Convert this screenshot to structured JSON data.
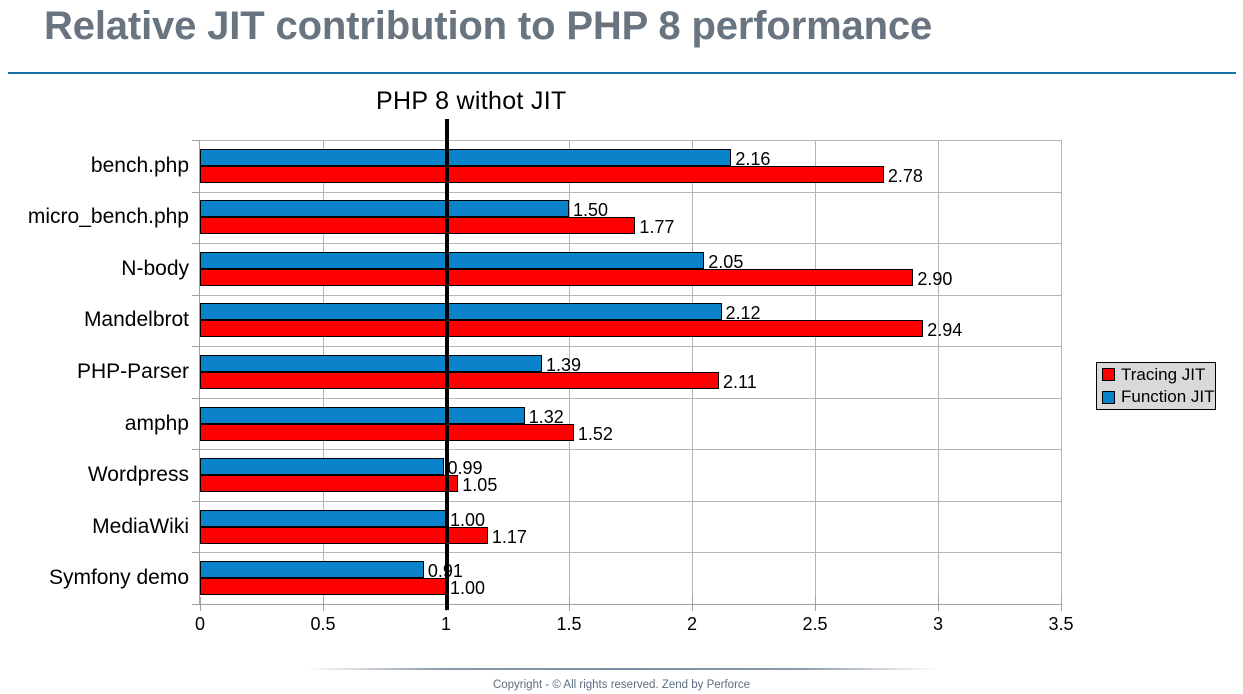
{
  "title": "Relative JIT contribution to PHP 8 performance",
  "footer": {
    "text": "Copyright - © All rights reserved. Zend by Perforce"
  },
  "colors": {
    "title": "#68747f",
    "title_rule": "#1773a7",
    "tracing_jit": "#ff0000",
    "function_jit": "#0b83ca",
    "legend_background": "#d9d9d9",
    "gridline": "#b5b5b5",
    "axis": "#a3a3a3",
    "reference_line": "#000000",
    "footer_text": "#5d6e7f"
  },
  "chart_data": {
    "type": "bar",
    "orientation": "horizontal",
    "title": "Relative JIT contribution to PHP 8 performance",
    "categories": [
      "bench.php",
      "micro_bench.php",
      "N-body",
      "Mandelbrot",
      "PHP-Parser",
      "amphp",
      "Wordpress",
      "MediaWiki",
      "Symfony demo"
    ],
    "series": [
      {
        "name": "Tracing JIT",
        "color": "#ff0000",
        "values": [
          2.78,
          1.77,
          2.9,
          2.94,
          2.11,
          1.52,
          1.05,
          1.17,
          1.0
        ]
      },
      {
        "name": "Function JIT",
        "color": "#0b83ca",
        "values": [
          2.16,
          1.5,
          2.05,
          2.12,
          1.39,
          1.32,
          0.99,
          1.0,
          0.91
        ]
      }
    ],
    "xlim": [
      0,
      3.5
    ],
    "xticks": [
      0,
      0.5,
      1,
      1.5,
      2,
      2.5,
      3,
      3.5
    ],
    "xlabel": "",
    "ylabel": "",
    "grid": true,
    "value_labels": true,
    "value_decimals": 2,
    "legend_position": "right",
    "reference_line": {
      "x": 1,
      "label": "PHP 8 withot JIT"
    }
  }
}
